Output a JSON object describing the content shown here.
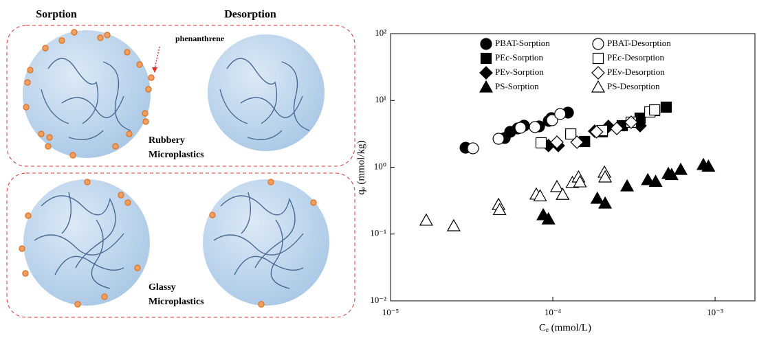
{
  "diagram": {
    "sorption": "Sorption",
    "desorption": "Desorption",
    "pointer": "phenanthrene",
    "rubbery": [
      "Rubbery",
      "Microplastics"
    ],
    "glassy": [
      "Glassy",
      "Microplastics"
    ]
  },
  "chart_data": {
    "type": "scatter",
    "x_label": "Cₑ (mmol/L)",
    "y_label": "qₑ (mmol/kg)",
    "log_x": true,
    "log_y": true,
    "xlim": [
      1e-05,
      0.00176
    ],
    "ylim": [
      0.01,
      100
    ],
    "xticks": [
      {
        "value": 1e-05,
        "label": "10⁻⁵"
      },
      {
        "value": 0.0001,
        "label": "10⁻⁴"
      },
      {
        "value": 0.001,
        "label": "10⁻³"
      }
    ],
    "yticks": [
      {
        "value": 0.01,
        "label": "10⁻²"
      },
      {
        "value": 0.1,
        "label": "10⁻¹"
      },
      {
        "value": 1,
        "label": "10⁰"
      },
      {
        "value": 10,
        "label": "10¹"
      },
      {
        "value": 100,
        "label": "10²"
      }
    ],
    "series": [
      {
        "name": "PBAT-Sorption",
        "marker": "circle",
        "filled": true,
        "color": "#000000",
        "x": [
          2.9e-05,
          5.05e-05,
          5.46e-05,
          6.08e-05,
          6.64e-05,
          8.23e-05,
          9.44e-05,
          9.81e-05,
          0.000124
        ],
        "values": [
          1.96,
          2.74,
          3.39,
          3.81,
          4.19,
          4.09,
          4.94,
          5.44,
          6.58
        ]
      },
      {
        "name": "PEc-Sorption",
        "marker": "square",
        "filled": true,
        "color": "#000000",
        "x": [
          0.000157,
          0.000202,
          0.000268,
          0.000345,
          0.000424,
          0.0005
        ],
        "values": [
          2.43,
          3.39,
          4.19,
          5.44,
          7.05,
          7.94
        ]
      },
      {
        "name": "PEv-Sorption",
        "marker": "diamond",
        "filled": true,
        "color": "#000000",
        "x": [
          9.4e-05,
          0.000108,
          0.000181,
          0.00022,
          0.000345
        ],
        "values": [
          2.11,
          2.11,
          3.47,
          4.09,
          4.19
        ]
      },
      {
        "name": "PS-Sorption",
        "marker": "triangle",
        "filled": true,
        "color": "#000000",
        "x": [
          8.73e-05,
          9.4e-05,
          0.000188,
          0.00021,
          0.000287,
          0.000385,
          0.00043,
          0.000515,
          0.00054,
          0.000614,
          0.000847,
          0.00091
        ],
        "values": [
          0.193,
          0.167,
          0.34,
          0.288,
          0.521,
          0.646,
          0.61,
          0.8,
          0.77,
          0.92,
          1.09,
          1.03
        ]
      },
      {
        "name": "PBAT-Desorption",
        "marker": "circle",
        "filled": false,
        "color": "#000000",
        "x": [
          3.22e-05,
          4.63e-05,
          6.32e-05,
          7.76e-05,
          9.9e-05,
          0.000111
        ],
        "values": [
          1.92,
          2.67,
          3.9,
          4.0,
          5.06,
          6.27
        ]
      },
      {
        "name": "PEc-Desorption",
        "marker": "square",
        "filled": false,
        "color": "#000000",
        "x": [
          8.47e-05,
          0.000129,
          0.000202,
          0.000304,
          0.000396,
          0.000424
        ],
        "values": [
          2.32,
          3.15,
          3.55,
          4.72,
          6.73,
          7.22
        ]
      },
      {
        "name": "PEv-Desorption",
        "marker": "diamond",
        "filled": false,
        "color": "#000000",
        "x": [
          0.000106,
          0.000141,
          0.000186,
          0.000248,
          0.000304
        ],
        "values": [
          2.37,
          2.37,
          3.39,
          3.81,
          4.72
        ]
      },
      {
        "name": "PS-Desorption",
        "marker": "triangle",
        "filled": false,
        "color": "#000000",
        "x": [
          1.66e-05,
          2.45e-05,
          4.63e-05,
          4.7e-05,
          7.91e-05,
          8.35e-05,
          0.000106,
          0.000115,
          0.000132,
          0.000144,
          0.000147,
          0.000208,
          0.00021
        ],
        "values": [
          0.16,
          0.132,
          0.275,
          0.23,
          0.393,
          0.37,
          0.509,
          0.39,
          0.587,
          0.71,
          0.6,
          0.838,
          0.71
        ]
      }
    ]
  }
}
